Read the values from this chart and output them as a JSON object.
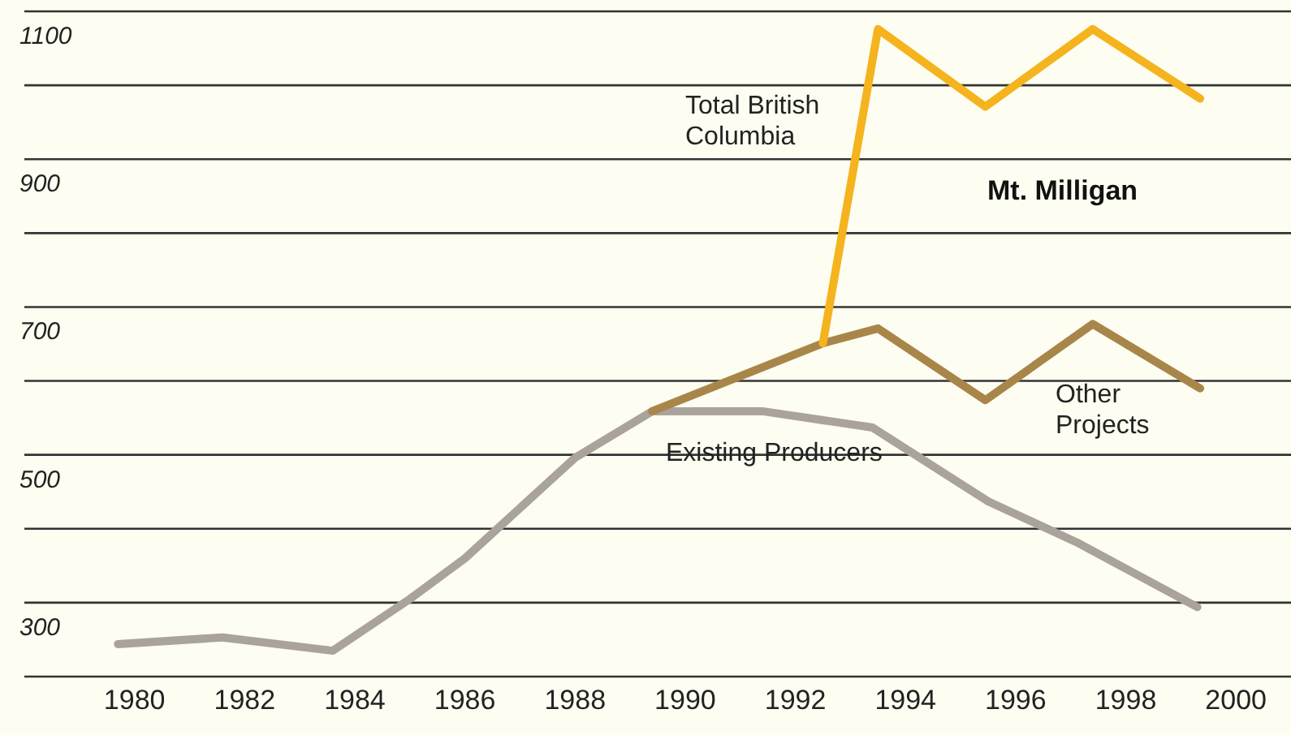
{
  "chart_data": {
    "type": "line",
    "series": [
      {
        "name": "Existing Producers",
        "color": "#a9a39b",
        "x": [
          1979.7,
          1981.6,
          1983.6,
          1985,
          1986,
          1988,
          1989.4,
          1991.4,
          1993.4,
          1995.5,
          1997.1,
          1999.3
        ],
        "values": [
          244,
          253,
          235,
          305,
          360,
          496,
          559,
          559,
          537,
          437,
          382,
          294
        ]
      },
      {
        "name": "Other Projects",
        "color": "#a8864a",
        "x": [
          1989.4,
          1992.5,
          1993.5,
          1995.45,
          1997.4,
          1999.35
        ],
        "values": [
          559,
          651,
          671,
          574,
          677,
          590
        ]
      },
      {
        "name": "Total British Columbia",
        "color": "#f5b31e",
        "x": [
          1992.5,
          1993.5,
          1995.45,
          1997.4,
          1999.35
        ],
        "values": [
          651,
          1076,
          971,
          1076,
          982
        ]
      }
    ],
    "annotations": [
      "Mt. Milligan"
    ],
    "xlim": [
      1978,
      2001
    ],
    "xticks": [
      1980,
      1982,
      1984,
      1986,
      1988,
      1990,
      1992,
      1994,
      1996,
      1998,
      2000
    ],
    "ylim": [
      200,
      1100
    ],
    "yticks": [
      {
        "value": 200,
        "label": null
      },
      300,
      {
        "value": 400,
        "label": null
      },
      500,
      {
        "value": 600,
        "label": null
      },
      700,
      {
        "value": 800,
        "label": null
      },
      900,
      {
        "value": 1000,
        "label": null
      },
      1100
    ],
    "grid": "y",
    "legend": false,
    "marker": "none",
    "line_style": "solid"
  }
}
